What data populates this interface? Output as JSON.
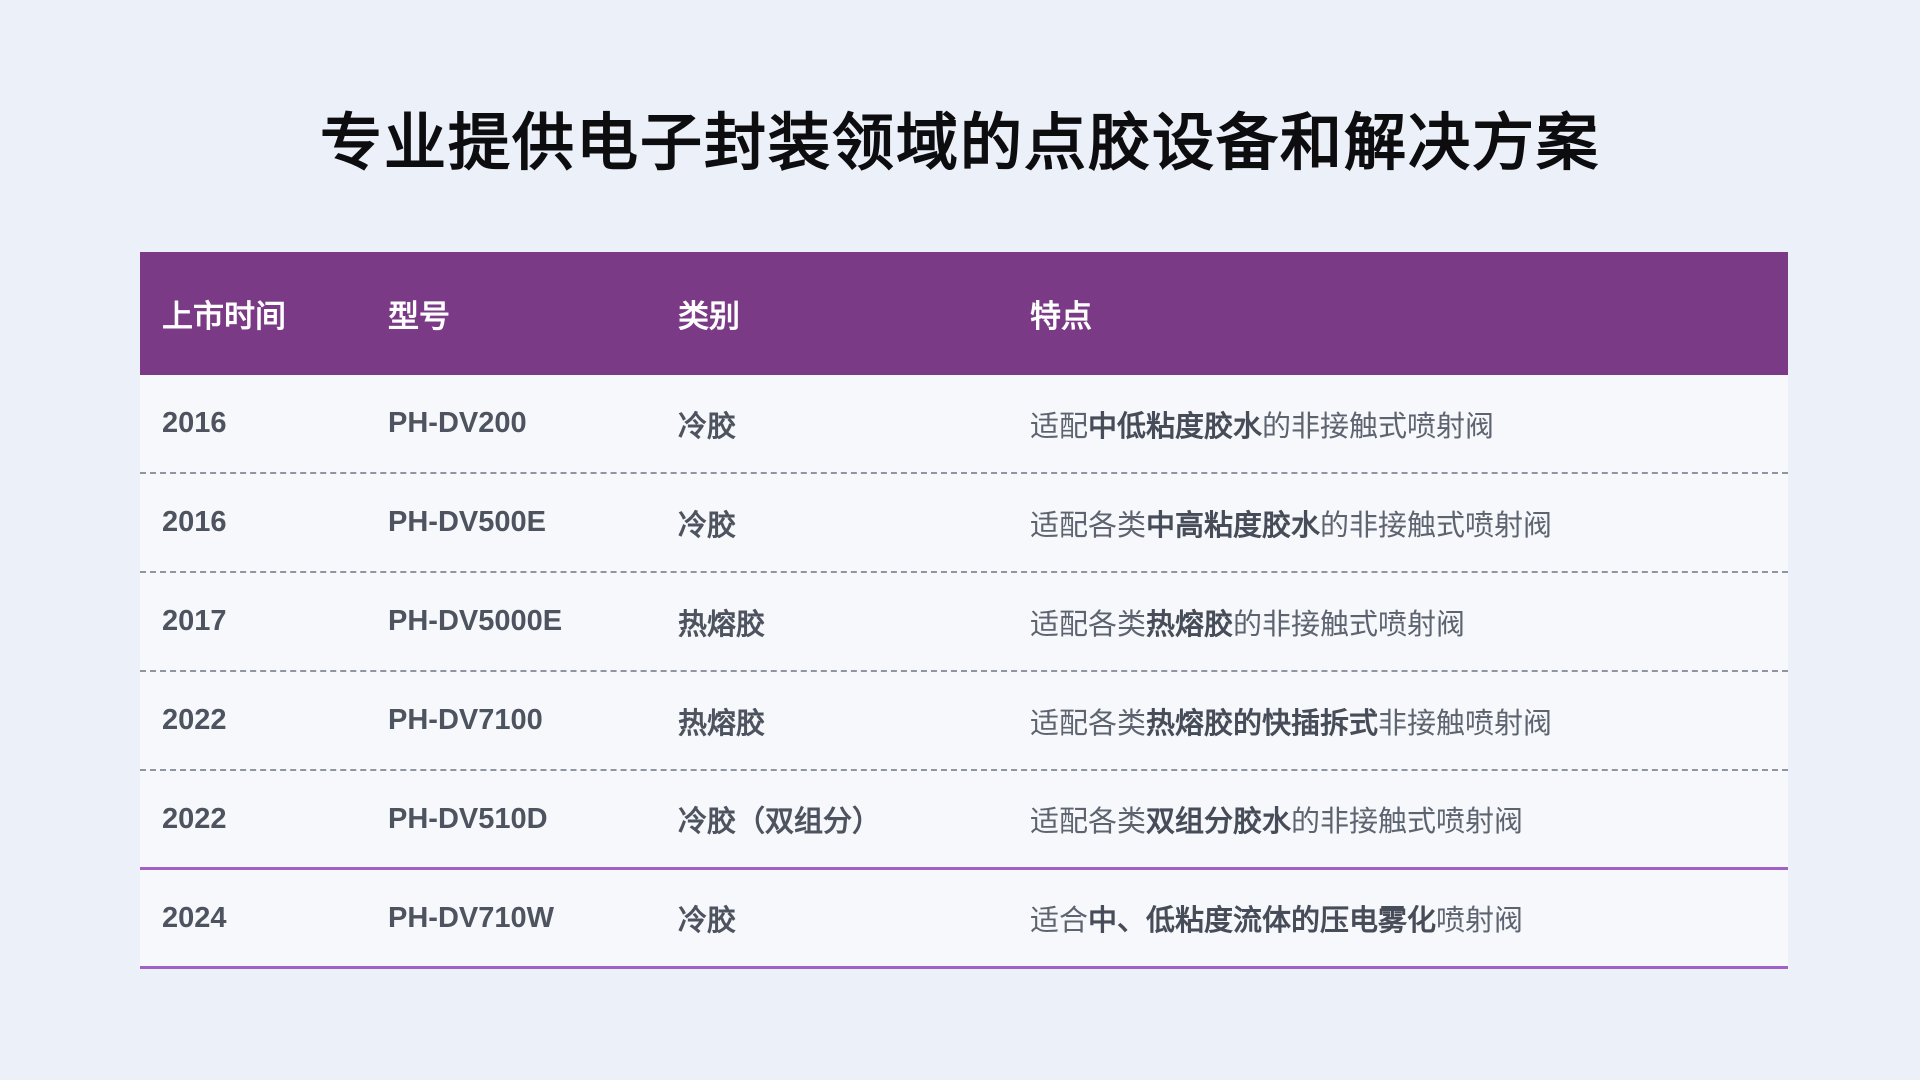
{
  "page": {
    "title": "专业提供电子封装领域的点胶设备和解决方案",
    "colors": {
      "page_background": "#ecf0f9",
      "header_background": "#7b3a86",
      "accent_line": "#a162c6",
      "body_text": "#5d6470"
    }
  },
  "table": {
    "columns": [
      {
        "label": "上市时间"
      },
      {
        "label": "型号"
      },
      {
        "label": "类别"
      },
      {
        "label": "特点"
      }
    ],
    "rows": [
      {
        "launch": "2016",
        "model": "PH-DV200",
        "category": "冷胶",
        "feature": {
          "pre": "适配",
          "bold": "中低粘度胶水",
          "post": "的非接触式喷射阀"
        }
      },
      {
        "launch": "2016",
        "model": "PH-DV500E",
        "category": "冷胶",
        "feature": {
          "pre": "适配各类",
          "bold": "中高粘度胶水",
          "post": "的非接触式喷射阀"
        }
      },
      {
        "launch": "2017",
        "model": "PH-DV5000E",
        "category": "热熔胶",
        "feature": {
          "pre": "适配各类",
          "bold": "热熔胶",
          "post": "的非接触式喷射阀"
        }
      },
      {
        "launch": "2022",
        "model": "PH-DV7100",
        "category": "热熔胶",
        "feature": {
          "pre": "适配各类",
          "bold": "热熔胶的快插拆式",
          "post": "非接触喷射阀"
        }
      },
      {
        "launch": "2022",
        "model": "PH-DV510D",
        "category": "冷胶（双组分）",
        "feature": {
          "pre": "适配各类",
          "bold": "双组分胶水",
          "post": "的非接触式喷射阀"
        }
      },
      {
        "launch": "2024",
        "model": "PH-DV710W",
        "category": "冷胶",
        "feature": {
          "pre": "适合",
          "bold": "中、低粘度流体的压电雾化",
          "post": "喷射阀"
        }
      }
    ]
  }
}
